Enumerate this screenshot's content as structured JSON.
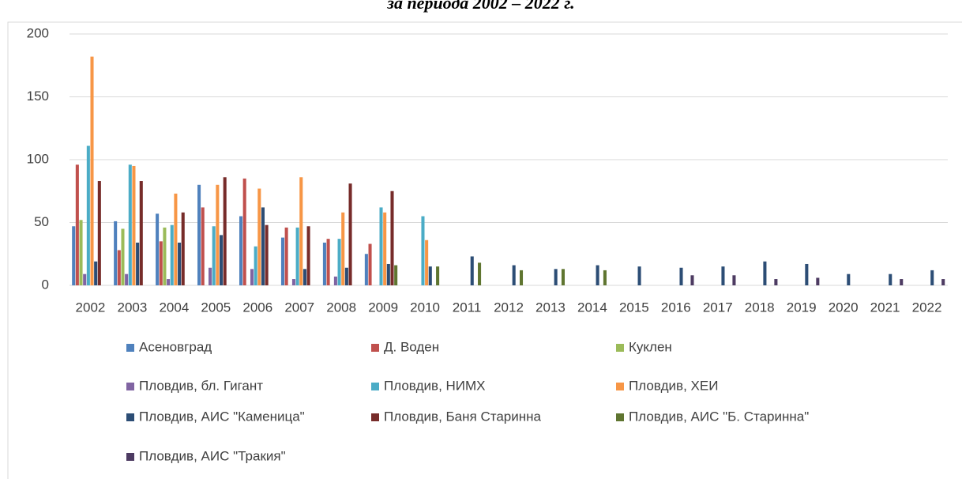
{
  "chart_data": {
    "type": "bar",
    "title": "за периода 2002 – 2022 г.",
    "categories": [
      "2002",
      "2003",
      "2004",
      "2005",
      "2006",
      "2007",
      "2008",
      "2009",
      "2010",
      "2011",
      "2012",
      "2013",
      "2014",
      "2015",
      "2016",
      "2017",
      "2018",
      "2019",
      "2020",
      "2021",
      "2022"
    ],
    "ylim": [
      0,
      200
    ],
    "yticks": [
      0,
      50,
      100,
      150,
      200
    ],
    "grid": true,
    "series": [
      {
        "name": "Асеновград",
        "color": "#4f81bd",
        "values": [
          47,
          51,
          57,
          80,
          55,
          38,
          34,
          25,
          null,
          null,
          null,
          null,
          null,
          null,
          null,
          null,
          null,
          null,
          null,
          null,
          null
        ]
      },
      {
        "name": "Д. Воден",
        "color": "#c0504d",
        "values": [
          96,
          28,
          35,
          62,
          85,
          46,
          37,
          33,
          null,
          null,
          null,
          null,
          null,
          null,
          null,
          null,
          null,
          null,
          null,
          null,
          null
        ]
      },
      {
        "name": "Куклен",
        "color": "#9bbb59",
        "values": [
          52,
          45,
          46,
          null,
          null,
          null,
          null,
          null,
          null,
          null,
          null,
          null,
          null,
          null,
          null,
          null,
          null,
          null,
          null,
          null,
          null
        ]
      },
      {
        "name": "Пловдив, бл. Гигант",
        "color": "#8064a2",
        "values": [
          9,
          9,
          5,
          14,
          13,
          5,
          7,
          null,
          null,
          null,
          null,
          null,
          null,
          null,
          null,
          null,
          null,
          null,
          null,
          null,
          null
        ]
      },
      {
        "name": "Пловдив, НИМХ",
        "color": "#4bacc6",
        "values": [
          111,
          96,
          48,
          47,
          31,
          46,
          37,
          62,
          55,
          null,
          null,
          null,
          null,
          null,
          null,
          null,
          null,
          null,
          null,
          null,
          null
        ]
      },
      {
        "name": "Пловдив, ХЕИ",
        "color": "#f79646",
        "values": [
          182,
          95,
          73,
          80,
          77,
          86,
          58,
          58,
          36,
          null,
          null,
          null,
          null,
          null,
          null,
          null,
          null,
          null,
          null,
          null,
          null
        ]
      },
      {
        "name": "Пловдив, АИС \"Каменица\"",
        "color": "#2c4d75",
        "values": [
          19,
          34,
          34,
          40,
          62,
          13,
          14,
          17,
          15,
          23,
          16,
          13,
          16,
          15,
          14,
          15,
          19,
          17,
          9,
          9,
          12
        ]
      },
      {
        "name": "Пловдив, Баня Старинна",
        "color": "#772c2a",
        "values": [
          83,
          83,
          58,
          86,
          48,
          47,
          81,
          75,
          null,
          null,
          null,
          null,
          null,
          null,
          null,
          null,
          null,
          null,
          null,
          null,
          null
        ]
      },
      {
        "name": "Пловдив, АИС \"Б. Старинна\"",
        "color": "#5f7530",
        "values": [
          null,
          null,
          null,
          null,
          null,
          null,
          null,
          16,
          15,
          18,
          12,
          13,
          12,
          null,
          null,
          null,
          null,
          null,
          null,
          null,
          null
        ]
      },
      {
        "name": "Пловдив, АИС \"Тракия\"",
        "color": "#4d3b62",
        "values": [
          null,
          null,
          null,
          null,
          null,
          null,
          null,
          null,
          null,
          null,
          null,
          null,
          null,
          null,
          8,
          8,
          5,
          6,
          null,
          5,
          5
        ]
      }
    ]
  }
}
